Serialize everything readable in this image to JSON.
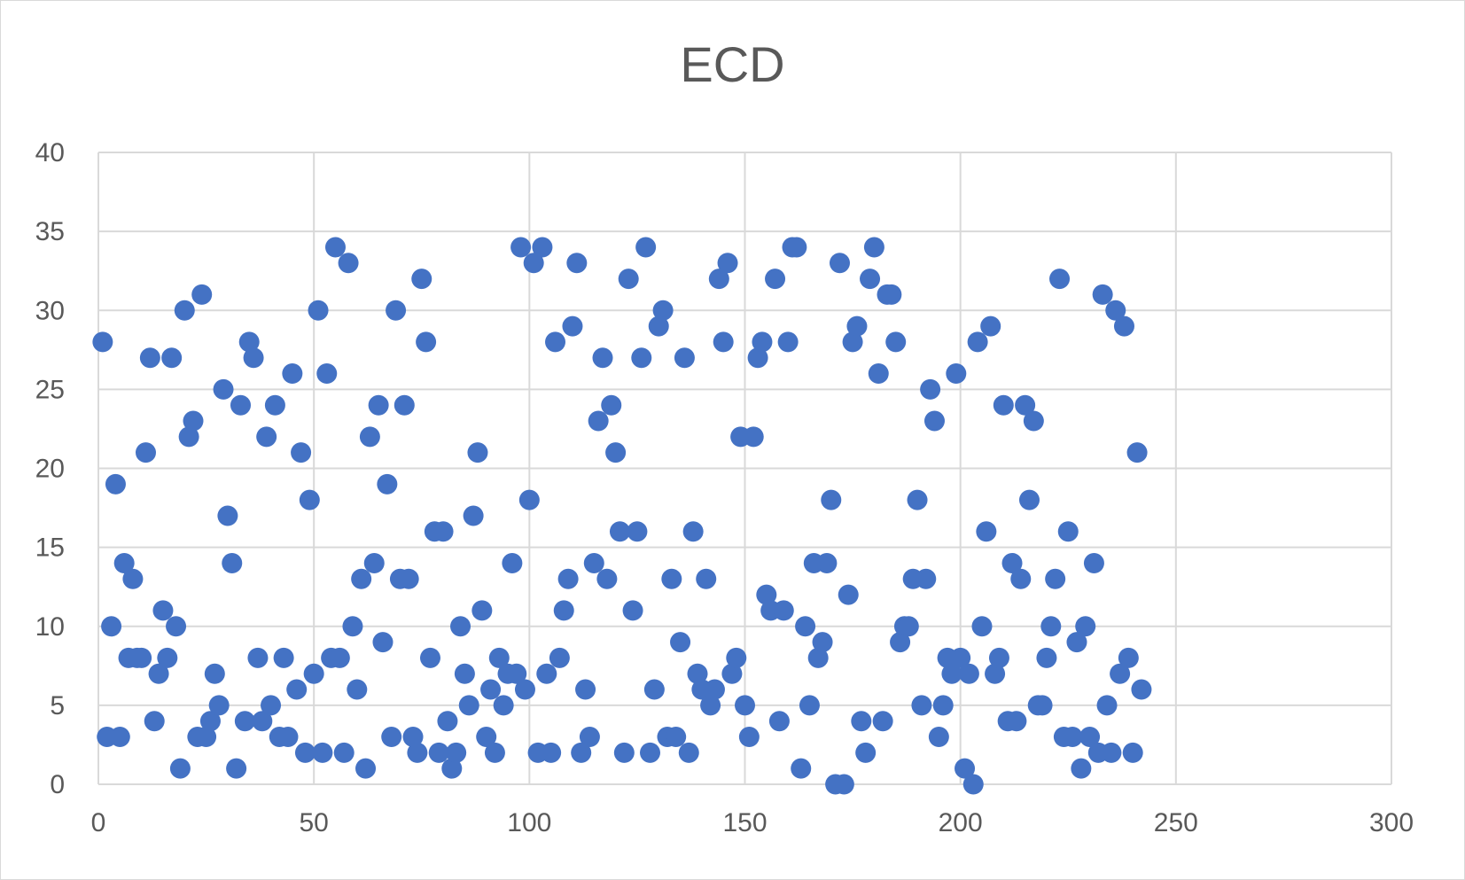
{
  "chart_data": {
    "type": "scatter",
    "title": "ECD",
    "xlabel": "",
    "ylabel": "",
    "xlim": [
      0,
      300
    ],
    "ylim": [
      0,
      40
    ],
    "xticks": [
      0,
      50,
      100,
      150,
      200,
      250,
      300
    ],
    "yticks": [
      0,
      5,
      10,
      15,
      20,
      25,
      30,
      35,
      40
    ],
    "grid": true,
    "legend": "none",
    "marker_color": "#4472c4",
    "gridline_color": "#d9d9d9",
    "axis_label_color": "#595959",
    "series": [
      {
        "values": [
          28,
          3,
          10,
          19,
          3,
          14,
          8,
          13,
          8,
          8,
          21,
          27,
          4,
          7,
          11,
          8,
          27,
          10,
          1,
          30,
          22,
          23,
          3,
          31,
          3,
          4,
          7,
          5,
          25,
          17,
          14,
          1,
          24,
          4,
          28,
          27,
          8,
          4,
          22,
          5,
          24,
          3,
          8,
          3,
          26,
          6,
          21,
          2,
          18,
          7,
          30,
          2,
          26,
          8,
          34,
          8,
          2,
          33,
          10,
          6,
          13,
          1,
          22,
          14,
          24,
          9,
          19,
          3,
          30,
          13,
          24,
          13,
          3,
          2,
          32,
          28,
          8,
          16,
          2,
          16,
          4,
          1,
          2,
          10,
          7,
          5,
          17,
          21,
          11,
          3,
          6,
          2,
          8,
          5,
          7,
          14,
          7,
          34,
          6,
          18,
          33,
          2,
          34,
          7,
          2,
          28,
          8,
          11,
          13,
          29,
          33,
          2,
          6,
          3,
          14,
          23,
          27,
          13,
          24,
          21,
          16,
          2,
          32,
          11,
          16,
          27,
          34,
          2,
          6,
          29,
          30,
          3,
          13,
          3,
          9,
          27,
          2,
          16,
          7,
          6,
          13,
          5,
          6,
          32,
          28,
          33,
          7,
          8,
          22,
          5,
          3,
          22,
          27,
          28,
          12,
          11,
          32,
          4,
          11,
          28,
          34,
          34,
          1,
          10,
          5,
          14,
          8,
          9,
          14,
          18,
          0,
          33,
          0,
          12,
          28,
          29,
          4,
          2,
          32,
          34,
          26,
          4,
          31,
          31,
          28,
          9,
          10,
          10,
          13,
          18,
          5,
          13,
          25,
          23,
          3,
          5,
          8,
          7,
          26,
          8,
          1,
          7,
          0,
          28,
          10,
          16,
          29,
          7,
          8,
          24,
          4,
          14,
          4,
          13,
          24,
          18,
          23,
          5,
          5,
          8,
          10,
          13,
          32,
          3,
          16,
          3,
          9,
          1,
          10,
          3,
          14,
          2,
          31,
          5,
          2,
          30,
          7,
          29,
          8,
          2,
          21,
          6
        ]
      }
    ]
  }
}
